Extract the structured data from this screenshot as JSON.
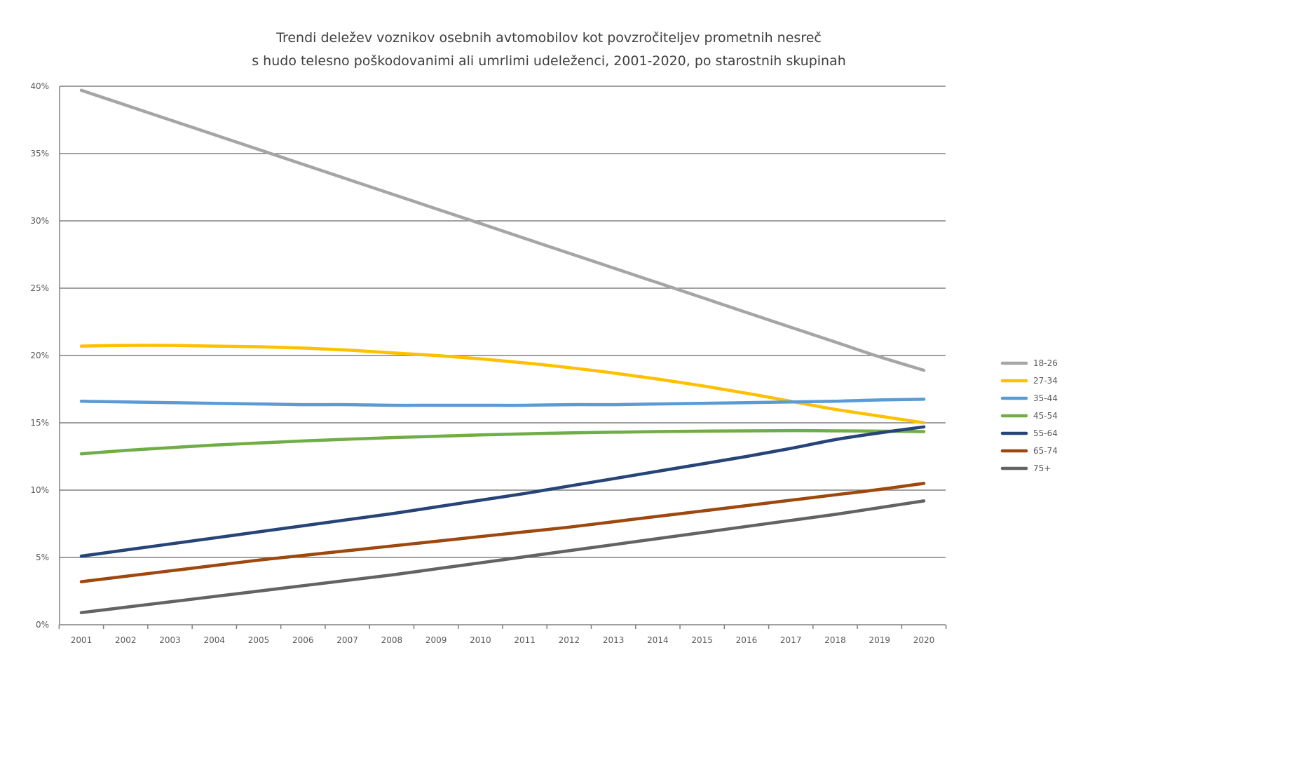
{
  "chart_data": {
    "type": "line",
    "title": [
      "Trendi deležev voznikov osebnih avtomobilov kot povzročiteljev prometnih nesreč",
      "s hudo telesno poškodovanimi ali umrlimi udeleženci, 2001-2020, po starostnih skupinah"
    ],
    "xlabel": "",
    "ylabel": "",
    "x": [
      "2001",
      "2002",
      "2003",
      "2004",
      "2005",
      "2006",
      "2007",
      "2008",
      "2009",
      "2010",
      "2011",
      "2012",
      "2013",
      "2014",
      "2015",
      "2016",
      "2017",
      "2018",
      "2019",
      "2020"
    ],
    "ylim": [
      0,
      40
    ],
    "yticks": [
      0,
      5,
      10,
      15,
      20,
      25,
      30,
      35,
      40
    ],
    "ytick_labels": [
      "0%",
      "5%",
      "10%",
      "15%",
      "20%",
      "25%",
      "30%",
      "35%",
      "40%"
    ],
    "grid": true,
    "legend_position": "right",
    "series": [
      {
        "name": "18-26",
        "color": "#a5a5a5",
        "values": [
          39.7,
          38.6,
          37.5,
          36.4,
          35.3,
          34.2,
          33.1,
          32.0,
          30.9,
          29.8,
          28.7,
          27.6,
          26.5,
          25.4,
          24.3,
          23.2,
          22.1,
          21.0,
          19.9,
          18.9
        ]
      },
      {
        "name": "27-34",
        "color": "#ffc000",
        "values": [
          20.7,
          20.75,
          20.75,
          20.7,
          20.65,
          20.55,
          20.4,
          20.2,
          20.0,
          19.75,
          19.45,
          19.1,
          18.7,
          18.25,
          17.75,
          17.2,
          16.6,
          16.0,
          15.5,
          15.0
        ]
      },
      {
        "name": "35-44",
        "color": "#5b9bd5",
        "values": [
          16.6,
          16.55,
          16.5,
          16.45,
          16.4,
          16.35,
          16.35,
          16.3,
          16.3,
          16.3,
          16.3,
          16.35,
          16.35,
          16.4,
          16.45,
          16.5,
          16.55,
          16.6,
          16.7,
          16.75
        ]
      },
      {
        "name": "45-54",
        "color": "#70ad47",
        "values": [
          12.7,
          12.95,
          13.15,
          13.35,
          13.5,
          13.65,
          13.78,
          13.9,
          14.0,
          14.1,
          14.18,
          14.25,
          14.3,
          14.35,
          14.38,
          14.4,
          14.42,
          14.4,
          14.38,
          14.35
        ]
      },
      {
        "name": "55-64",
        "color": "#264478",
        "values": [
          5.1,
          5.55,
          6.0,
          6.45,
          6.9,
          7.35,
          7.8,
          8.25,
          8.75,
          9.25,
          9.75,
          10.3,
          10.85,
          11.4,
          11.95,
          12.5,
          13.1,
          13.75,
          14.25,
          14.7
        ]
      },
      {
        "name": "65-74",
        "color": "#9e480e",
        "values": [
          3.2,
          3.6,
          4.0,
          4.4,
          4.8,
          5.15,
          5.5,
          5.85,
          6.2,
          6.55,
          6.9,
          7.25,
          7.65,
          8.05,
          8.45,
          8.85,
          9.25,
          9.65,
          10.05,
          10.5
        ]
      },
      {
        "name": "75+",
        "color": "#636363",
        "values": [
          0.9,
          1.3,
          1.7,
          2.1,
          2.5,
          2.9,
          3.3,
          3.7,
          4.15,
          4.6,
          5.05,
          5.5,
          5.95,
          6.4,
          6.85,
          7.3,
          7.75,
          8.2,
          8.7,
          9.2
        ]
      }
    ]
  }
}
